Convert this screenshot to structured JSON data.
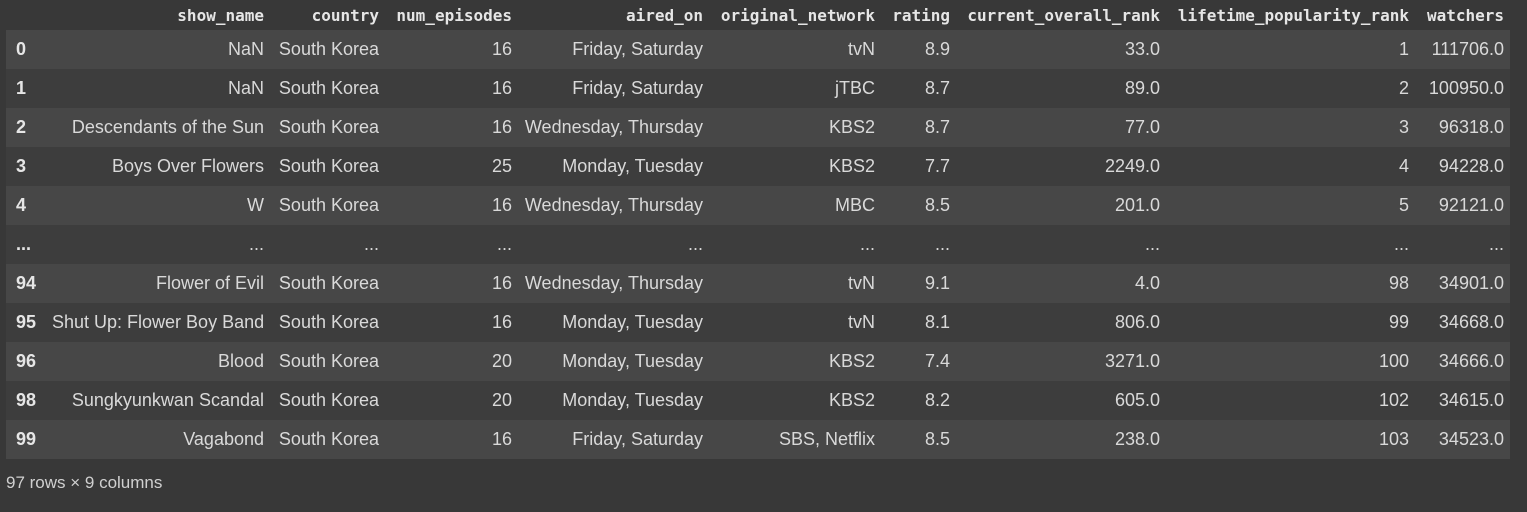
{
  "table": {
    "index_header": "",
    "columns": [
      "show_name",
      "country",
      "num_episodes",
      "aired_on",
      "original_network",
      "rating",
      "current_overall_rank",
      "lifetime_popularity_rank",
      "watchers"
    ],
    "rows": [
      {
        "index": "0",
        "cells": [
          "NaN",
          "South Korea",
          "16",
          "Friday, Saturday",
          "tvN",
          "8.9",
          "33.0",
          "1",
          "111706.0"
        ]
      },
      {
        "index": "1",
        "cells": [
          "NaN",
          "South Korea",
          "16",
          "Friday, Saturday",
          "jTBC",
          "8.7",
          "89.0",
          "2",
          "100950.0"
        ]
      },
      {
        "index": "2",
        "cells": [
          "Descendants of the Sun",
          "South Korea",
          "16",
          "Wednesday, Thursday",
          "KBS2",
          "8.7",
          "77.0",
          "3",
          "96318.0"
        ]
      },
      {
        "index": "3",
        "cells": [
          "Boys Over Flowers",
          "South Korea",
          "25",
          "Monday, Tuesday",
          "KBS2",
          "7.7",
          "2249.0",
          "4",
          "94228.0"
        ]
      },
      {
        "index": "4",
        "cells": [
          "W",
          "South Korea",
          "16",
          "Wednesday, Thursday",
          "MBC",
          "8.5",
          "201.0",
          "5",
          "92121.0"
        ]
      },
      {
        "index": "...",
        "cells": [
          "...",
          "...",
          "...",
          "...",
          "...",
          "...",
          "...",
          "...",
          "..."
        ]
      },
      {
        "index": "94",
        "cells": [
          "Flower of Evil",
          "South Korea",
          "16",
          "Wednesday, Thursday",
          "tvN",
          "9.1",
          "4.0",
          "98",
          "34901.0"
        ]
      },
      {
        "index": "95",
        "cells": [
          "Shut Up: Flower Boy Band",
          "South Korea",
          "16",
          "Monday, Tuesday",
          "tvN",
          "8.1",
          "806.0",
          "99",
          "34668.0"
        ]
      },
      {
        "index": "96",
        "cells": [
          "Blood",
          "South Korea",
          "20",
          "Monday, Tuesday",
          "KBS2",
          "7.4",
          "3271.0",
          "100",
          "34666.0"
        ]
      },
      {
        "index": "98",
        "cells": [
          "Sungkyunkwan Scandal",
          "South Korea",
          "20",
          "Monday, Tuesday",
          "KBS2",
          "8.2",
          "605.0",
          "102",
          "34615.0"
        ]
      },
      {
        "index": "99",
        "cells": [
          "Vagabond",
          "South Korea",
          "16",
          "Friday, Saturday",
          "SBS, Netflix",
          "8.5",
          "238.0",
          "103",
          "34523.0"
        ]
      }
    ]
  },
  "shape_text": "97 rows × 9 columns"
}
